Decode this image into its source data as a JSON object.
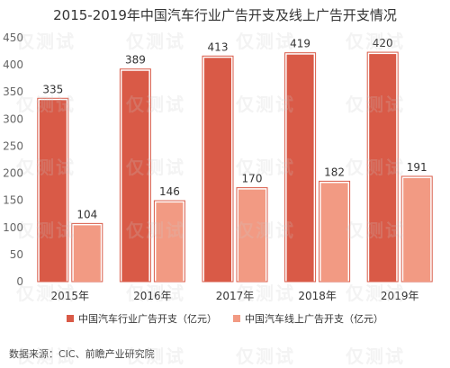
{
  "chart_data": {
    "type": "bar",
    "title": "2015-2019年中国汽车行业广告开支及线上广告开支情况",
    "categories": [
      "2015年",
      "2016年",
      "2017年",
      "2018年",
      "2019年"
    ],
    "series": [
      {
        "name": "中国汽车行业广告开支（亿元）",
        "values": [
          335,
          389,
          413,
          419,
          420
        ],
        "color": "#d95a47",
        "border": "#d95a47"
      },
      {
        "name": "中国汽车线上广告开支（亿元）",
        "values": [
          104,
          146,
          170,
          182,
          191
        ],
        "color": "#f29a83",
        "border": "#d95a47"
      }
    ],
    "ylim": [
      0,
      450
    ],
    "yticks": [
      0,
      50,
      100,
      150,
      200,
      250,
      300,
      350,
      400,
      450
    ],
    "grid": false,
    "legend": "bottom"
  },
  "source": "数据来源：CIC、前瞻产业研究院",
  "watermark": "仅测试"
}
